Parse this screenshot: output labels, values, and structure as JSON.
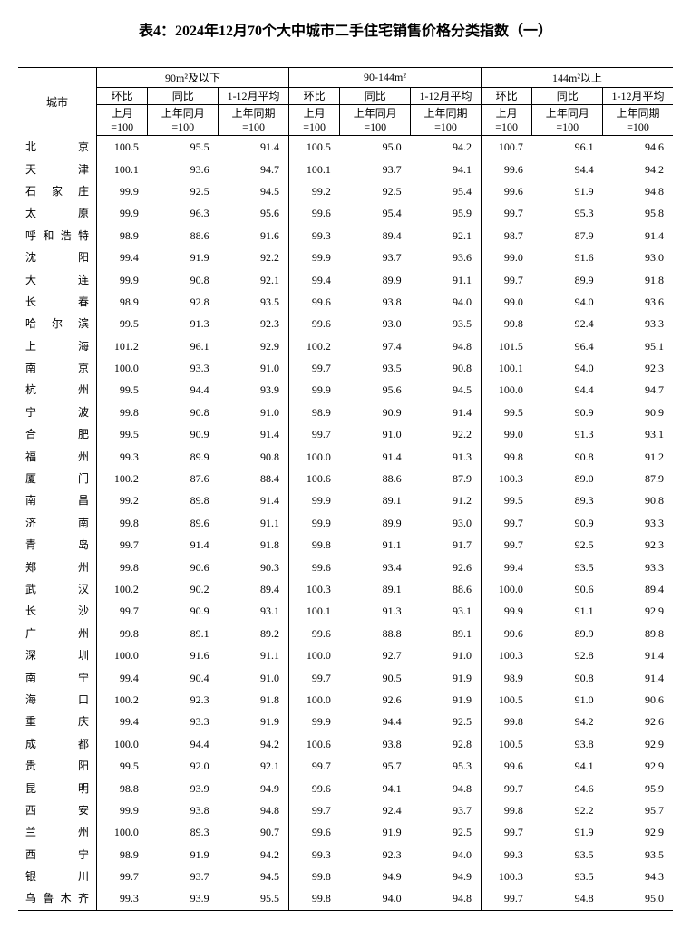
{
  "title": "表4：2024年12月70个大中城市二手住宅销售价格分类指数（一）",
  "headers": {
    "city": "城市",
    "group1": "90m²及以下",
    "group2": "90-144m²",
    "group3": "144m²以上",
    "col1": "环比",
    "col2": "同比",
    "col3": "1-12月平均",
    "sub1": "上月=100",
    "sub2": "上年同月=100",
    "sub3": "上年同期=100"
  },
  "rows": [
    {
      "city": "北　　京",
      "d": [
        100.5,
        95.5,
        91.4,
        100.5,
        95.0,
        94.2,
        100.7,
        96.1,
        94.6
      ]
    },
    {
      "city": "天　　津",
      "d": [
        100.1,
        93.6,
        94.7,
        100.1,
        93.7,
        94.1,
        99.6,
        94.4,
        94.2
      ]
    },
    {
      "city": "石 家 庄",
      "d": [
        99.9,
        92.5,
        94.5,
        99.2,
        92.5,
        95.4,
        99.6,
        91.9,
        94.8
      ]
    },
    {
      "city": "太　　原",
      "d": [
        99.9,
        96.3,
        95.6,
        99.6,
        95.4,
        95.9,
        99.7,
        95.3,
        95.8
      ]
    },
    {
      "city": "呼和浩特",
      "d": [
        98.9,
        88.6,
        91.6,
        99.3,
        89.4,
        92.1,
        98.7,
        87.9,
        91.4
      ]
    },
    {
      "city": "沈　　阳",
      "d": [
        99.4,
        91.9,
        92.2,
        99.9,
        93.7,
        93.6,
        99.0,
        91.6,
        93.0
      ]
    },
    {
      "city": "大　　连",
      "d": [
        99.9,
        90.8,
        92.1,
        99.4,
        89.9,
        91.1,
        99.7,
        89.9,
        91.8
      ]
    },
    {
      "city": "长　　春",
      "d": [
        98.9,
        92.8,
        93.5,
        99.6,
        93.8,
        94.0,
        99.0,
        94.0,
        93.6
      ]
    },
    {
      "city": "哈 尔 滨",
      "d": [
        99.5,
        91.3,
        92.3,
        99.6,
        93.0,
        93.5,
        99.8,
        92.4,
        93.3
      ]
    },
    {
      "city": "上　　海",
      "d": [
        101.2,
        96.1,
        92.9,
        100.2,
        97.4,
        94.8,
        101.5,
        96.4,
        95.1
      ]
    },
    {
      "city": "南　　京",
      "d": [
        100.0,
        93.3,
        91.0,
        99.7,
        93.5,
        90.8,
        100.1,
        94.0,
        92.3
      ]
    },
    {
      "city": "杭　　州",
      "d": [
        99.5,
        94.4,
        93.9,
        99.9,
        95.6,
        94.5,
        100.0,
        94.4,
        94.7
      ]
    },
    {
      "city": "宁　　波",
      "d": [
        99.8,
        90.8,
        91.0,
        98.9,
        90.9,
        91.4,
        99.5,
        90.9,
        90.9
      ]
    },
    {
      "city": "合　　肥",
      "d": [
        99.5,
        90.9,
        91.4,
        99.7,
        91.0,
        92.2,
        99.0,
        91.3,
        93.1
      ]
    },
    {
      "city": "福　　州",
      "d": [
        99.3,
        89.9,
        90.8,
        100.0,
        91.4,
        91.3,
        99.8,
        90.8,
        91.2
      ]
    },
    {
      "city": "厦　　门",
      "d": [
        100.2,
        87.6,
        88.4,
        100.6,
        88.6,
        87.9,
        100.3,
        89.0,
        87.9
      ]
    },
    {
      "city": "南　　昌",
      "d": [
        99.2,
        89.8,
        91.4,
        99.9,
        89.1,
        91.2,
        99.5,
        89.3,
        90.8
      ]
    },
    {
      "city": "济　　南",
      "d": [
        99.8,
        89.6,
        91.1,
        99.9,
        89.9,
        93.0,
        99.7,
        90.9,
        93.3
      ]
    },
    {
      "city": "青　　岛",
      "d": [
        99.7,
        91.4,
        91.8,
        99.8,
        91.1,
        91.7,
        99.7,
        92.5,
        92.3
      ]
    },
    {
      "city": "郑　　州",
      "d": [
        99.8,
        90.6,
        90.3,
        99.6,
        93.4,
        92.6,
        99.4,
        93.5,
        93.3
      ]
    },
    {
      "city": "武　　汉",
      "d": [
        100.2,
        90.2,
        89.4,
        100.3,
        89.1,
        88.6,
        100.0,
        90.6,
        89.4
      ]
    },
    {
      "city": "长　　沙",
      "d": [
        99.7,
        90.9,
        93.1,
        100.1,
        91.3,
        93.1,
        99.9,
        91.1,
        92.9
      ]
    },
    {
      "city": "广　　州",
      "d": [
        99.8,
        89.1,
        89.2,
        99.6,
        88.8,
        89.1,
        99.6,
        89.9,
        89.8
      ]
    },
    {
      "city": "深　　圳",
      "d": [
        100.0,
        91.6,
        91.1,
        100.0,
        92.7,
        91.0,
        100.3,
        92.8,
        91.4
      ]
    },
    {
      "city": "南　　宁",
      "d": [
        99.4,
        90.4,
        91.0,
        99.7,
        90.5,
        91.9,
        98.9,
        90.8,
        91.4
      ]
    },
    {
      "city": "海　　口",
      "d": [
        100.2,
        92.3,
        91.8,
        100.0,
        92.6,
        91.9,
        100.5,
        91.0,
        90.6
      ]
    },
    {
      "city": "重　　庆",
      "d": [
        99.4,
        93.3,
        91.9,
        99.9,
        94.4,
        92.5,
        99.8,
        94.2,
        92.6
      ]
    },
    {
      "city": "成　　都",
      "d": [
        100.0,
        94.4,
        94.2,
        100.6,
        93.8,
        92.8,
        100.5,
        93.8,
        92.9
      ]
    },
    {
      "city": "贵　　阳",
      "d": [
        99.5,
        92.0,
        92.1,
        99.7,
        95.7,
        95.3,
        99.6,
        94.1,
        92.9
      ]
    },
    {
      "city": "昆　　明",
      "d": [
        98.8,
        93.9,
        94.9,
        99.6,
        94.1,
        94.8,
        99.7,
        94.6,
        95.9
      ]
    },
    {
      "city": "西　　安",
      "d": [
        99.9,
        93.8,
        94.8,
        99.7,
        92.4,
        93.7,
        99.8,
        92.2,
        95.7
      ]
    },
    {
      "city": "兰　　州",
      "d": [
        100.0,
        89.3,
        90.7,
        99.6,
        91.9,
        92.5,
        99.7,
        91.9,
        92.9
      ]
    },
    {
      "city": "西　　宁",
      "d": [
        98.9,
        91.9,
        94.2,
        99.3,
        92.3,
        94.0,
        99.3,
        93.5,
        93.5
      ]
    },
    {
      "city": "银　　川",
      "d": [
        99.7,
        93.7,
        94.5,
        99.8,
        94.9,
        94.9,
        100.3,
        93.5,
        94.3
      ]
    },
    {
      "city": "乌鲁木齐",
      "d": [
        99.3,
        93.9,
        95.5,
        99.8,
        94.0,
        94.8,
        99.7,
        94.8,
        95.0
      ]
    }
  ]
}
